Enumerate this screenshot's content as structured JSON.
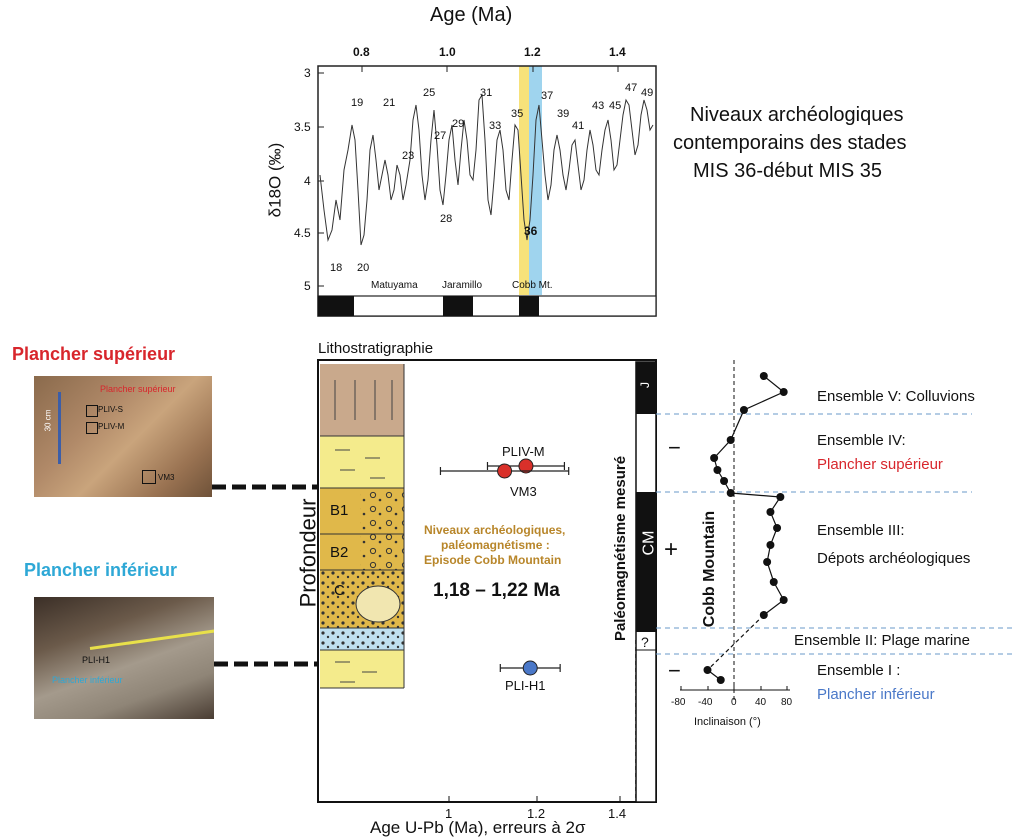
{
  "colors": {
    "red": "#d8262c",
    "blue": "#2ea8d6",
    "gold": "#b8862a",
    "dot_red": "#d9302a",
    "dot_blue": "#4a78c8",
    "band_yellow": "#f7e27a",
    "band_blue": "#9fd4ee",
    "sediment": "#e4c24a"
  },
  "isotope": {
    "title": "Age (Ma)",
    "ylabel": "δ18O (‰)",
    "xticks": [
      "0.8",
      "1.0",
      "1.2",
      "1.4"
    ],
    "yticks": [
      "3",
      "3.5",
      "4",
      "4.5",
      "5"
    ],
    "stage_labels": [
      "19",
      "21",
      "25",
      "23",
      "27",
      "29",
      "31",
      "33",
      "35",
      "37",
      "39",
      "41",
      "43",
      "45",
      "47",
      "49",
      "18",
      "20",
      "28",
      "36"
    ],
    "chron_labels": [
      "Matuyama",
      "Jaramillo",
      "Cobb Mt."
    ]
  },
  "header_note": {
    "line1": "Niveaux archéologiques",
    "line2": "contemporains des stades",
    "line3": "MIS 36-début MIS 35"
  },
  "photos": {
    "upper_title": "Plancher supérieur",
    "upper_inline_label": "Plancher supérieur",
    "upper_scale": "30 cm",
    "upper_boxes": [
      "PLIV-S",
      "PLIV-M",
      "VM3"
    ],
    "lower_title": "Plancher inférieur",
    "lower_sample": "PLI-H1",
    "lower_inline_label": "Plancher inférieur"
  },
  "section": {
    "title": "Lithostratigraphie",
    "depth_label": "Profondeur",
    "layers": [
      "B1",
      "B2",
      "C"
    ],
    "box_text_1": "Niveaux archéologiques,",
    "box_text_2": "paléomagnétisme :",
    "box_text_3": "Episode Cobb Mountain",
    "age_result": "1,18 – 1,22 Ma",
    "samples": [
      {
        "name": "PLIV-M",
        "age": 1.18,
        "err": 0.09
      },
      {
        "name": "VM3",
        "age": 1.13,
        "err": 0.15
      },
      {
        "name": "PLI-H1",
        "age": 1.19,
        "err": 0.07
      }
    ],
    "xticks": [
      "1",
      "1.2",
      "1.4"
    ],
    "xlabel": "Age U-Pb (Ma), erreurs à 2σ"
  },
  "paleomag": {
    "column_label": "Paléomagnétisme mesuré",
    "polarity_labels": [
      "J",
      "−",
      "CM",
      "+",
      "?",
      "−"
    ],
    "episode_label": "Cobb Mountain",
    "xticks": [
      "-80",
      "-40",
      "0",
      "40",
      "80"
    ],
    "xlabel": "Inclinaison (°)",
    "inclinations": [
      45,
      75,
      15,
      -5,
      -30,
      -25,
      -15,
      -5,
      70,
      55,
      65,
      55,
      50,
      60,
      75,
      45,
      -40,
      -20
    ]
  },
  "ensembles": {
    "e5": "Ensemble V: Colluvions",
    "e4_a": "Ensemble IV:",
    "e4_b": "Plancher supérieur",
    "e3_a": "Ensemble III:",
    "e3_b": "Dépots archéologiques",
    "e2": "Ensemble II: Plage marine",
    "e1_a": "Ensemble I :",
    "e1_b": "Plancher inférieur"
  }
}
